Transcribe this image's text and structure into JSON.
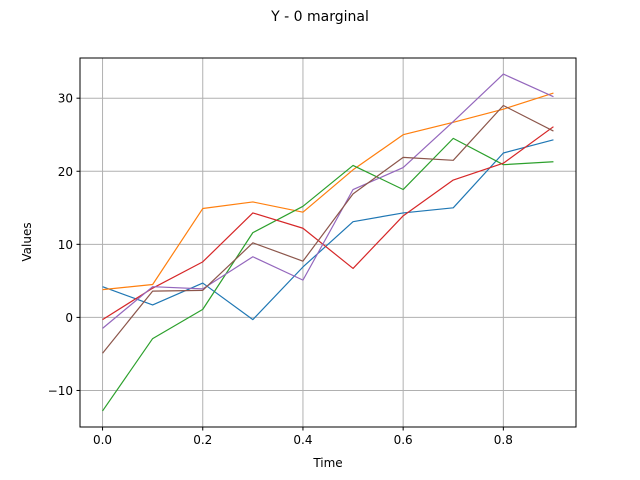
{
  "chart_data": {
    "type": "line",
    "title": "Y - 0 marginal",
    "xlabel": "Time",
    "ylabel": "Values",
    "xlim": [
      -0.045,
      0.945
    ],
    "ylim": [
      -15,
      35.5
    ],
    "xticks": [
      0.0,
      0.2,
      0.4,
      0.6,
      0.8
    ],
    "xtick_labels": [
      "0.0",
      "0.2",
      "0.4",
      "0.6",
      "0.8"
    ],
    "yticks": [
      -10,
      0,
      10,
      20,
      30
    ],
    "ytick_labels": [
      "−10",
      "0",
      "10",
      "20",
      "30"
    ],
    "grid": true,
    "x": [
      0.0,
      0.1,
      0.2,
      0.3,
      0.4,
      0.5,
      0.6,
      0.7,
      0.8,
      0.9
    ],
    "series": [
      {
        "color": "#1f77b4",
        "values": [
          4.2,
          1.7,
          4.7,
          -0.3,
          6.9,
          13.1,
          14.3,
          15.0,
          22.5,
          24.3
        ]
      },
      {
        "color": "#ff7f0e",
        "values": [
          3.8,
          4.5,
          14.9,
          15.8,
          14.4,
          20.2,
          25.0,
          26.7,
          28.5,
          30.7
        ]
      },
      {
        "color": "#2ca02c",
        "values": [
          -12.8,
          -2.9,
          1.1,
          11.6,
          15.2,
          20.8,
          17.5,
          24.5,
          20.9,
          21.3
        ]
      },
      {
        "color": "#d62728",
        "values": [
          -0.3,
          4.0,
          7.6,
          14.3,
          12.2,
          6.7,
          13.9,
          18.8,
          21.1,
          26.1
        ]
      },
      {
        "color": "#9467bd",
        "values": [
          -1.5,
          4.2,
          3.9,
          8.3,
          5.1,
          17.5,
          20.5,
          26.8,
          33.3,
          30.2
        ]
      },
      {
        "color": "#8c564b",
        "values": [
          -4.9,
          3.6,
          3.7,
          10.2,
          7.7,
          16.9,
          21.9,
          21.5,
          29.0,
          25.5
        ]
      }
    ]
  }
}
